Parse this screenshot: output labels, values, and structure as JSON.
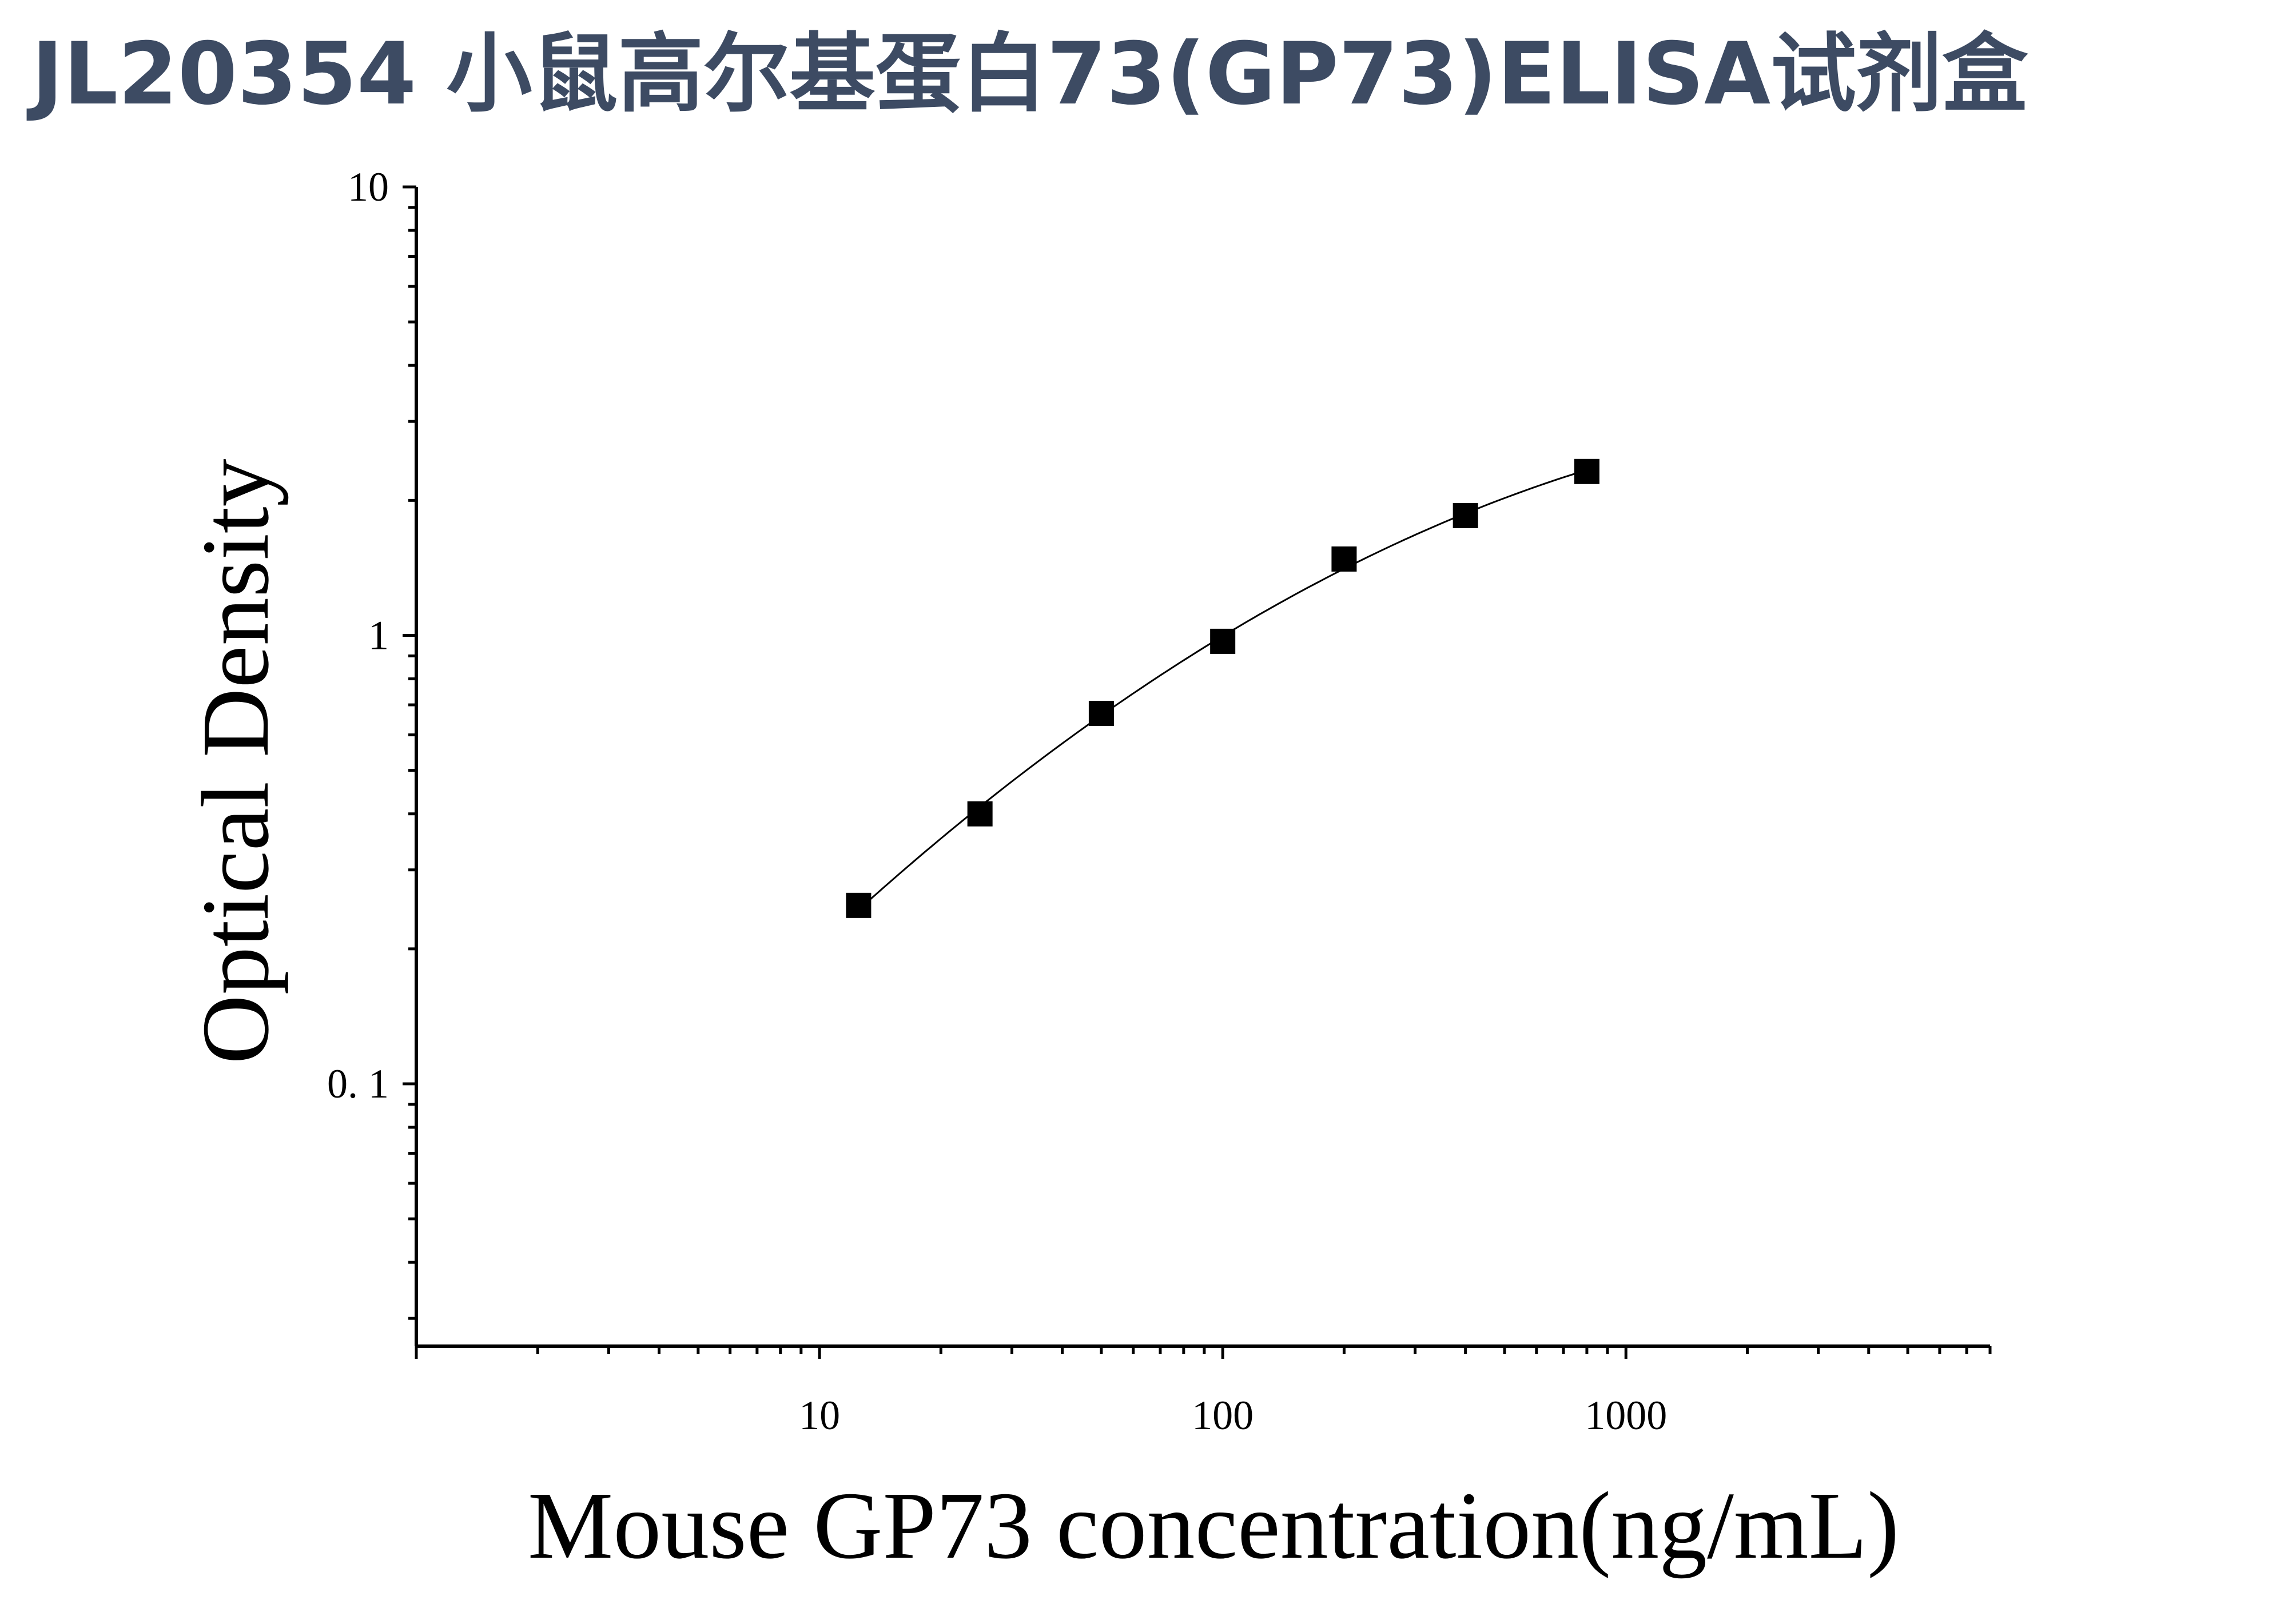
{
  "title": "JL20354 小鼠高尔基蛋白73(GP73)ELISA试剂盒",
  "chart_data": {
    "type": "scatter",
    "xlabel": "Mouse GP73 concentration(ng/mL)",
    "ylabel": "Optical Density",
    "x_scale": "log",
    "y_scale": "log",
    "xlim": [
      1,
      8000
    ],
    "ylim": [
      0.026,
      10
    ],
    "x_ticks": [
      {
        "value": 10,
        "label": "10"
      },
      {
        "value": 100,
        "label": "100"
      },
      {
        "value": 1000,
        "label": "1000"
      }
    ],
    "y_ticks": [
      {
        "value": 0.1,
        "label": "0. 1"
      },
      {
        "value": 1,
        "label": "1"
      },
      {
        "value": 10,
        "label": "10"
      }
    ],
    "grid": false,
    "legend": "none",
    "series": [
      {
        "x": [
          12.5,
          25,
          50,
          100,
          200,
          400,
          800
        ],
        "y": [
          0.25,
          0.4,
          0.67,
          0.97,
          1.48,
          1.85,
          2.32
        ],
        "marker": "square",
        "fit_curve": true,
        "color": "#000000"
      }
    ]
  }
}
